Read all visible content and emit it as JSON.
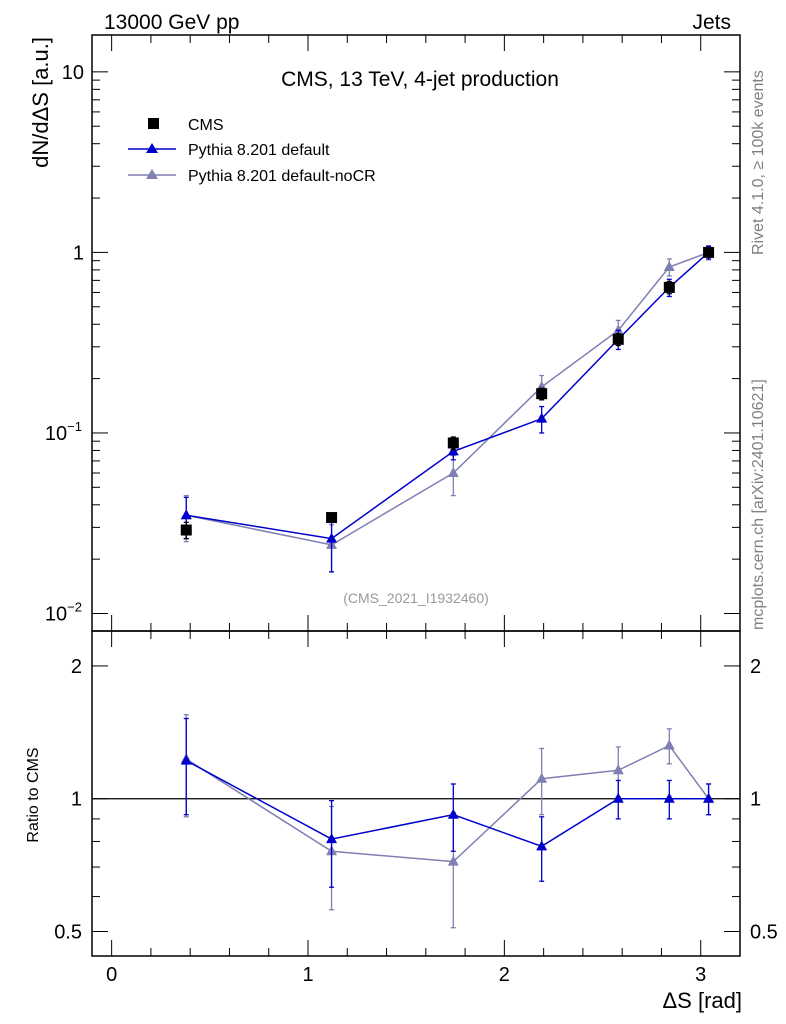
{
  "header": {
    "left": "13000 GeV pp",
    "right": "Jets"
  },
  "side_labels": {
    "rivet": "Rivet 4.1.0, ≥ 100k events",
    "mcplots": "mcplots.cern.ch [arXiv:2401.10621]"
  },
  "colors": {
    "data": "#000000",
    "pythia_default": "#0000cc",
    "pythia_nocr": "#7f7fb3",
    "watermark": "#999999",
    "side_text": "#808080"
  },
  "chart_data": [
    {
      "type": "line",
      "role": "main",
      "title": "CMS, 13 TeV, 4-jet production",
      "ylabel": "dN/dΔS [a.u.]",
      "yscale": "log",
      "ylim": [
        0.008,
        16
      ],
      "xlim": [
        -0.1,
        3.2
      ],
      "analysis_id": "(CMS_2021_I1932460)",
      "y_ticks": [
        {
          "value": 10,
          "label": "10"
        },
        {
          "value": 1,
          "label": "1"
        },
        {
          "value": 0.1,
          "base": "10",
          "exp": "−1"
        },
        {
          "value": 0.01,
          "base": "10",
          "exp": "−2"
        }
      ],
      "series": [
        {
          "name": "CMS",
          "kind": "data",
          "x": [
            0.38,
            1.12,
            1.74,
            2.19,
            2.58,
            2.84,
            3.04
          ],
          "y": [
            0.029,
            0.034,
            0.088,
            0.165,
            0.33,
            0.64,
            1.0
          ],
          "yerr": [
            0.003,
            0.002,
            0.007,
            0.012,
            0.025,
            0.05,
            0.05
          ]
        },
        {
          "name": "Pythia 8.201 default",
          "kind": "mc",
          "x": [
            0.38,
            1.12,
            1.74,
            2.19,
            2.58,
            2.84,
            3.04
          ],
          "y": [
            0.035,
            0.026,
            0.079,
            0.12,
            0.33,
            0.64,
            1.0
          ],
          "yerr": [
            0.009,
            0.009,
            0.008,
            0.02,
            0.04,
            0.07,
            0.08
          ]
        },
        {
          "name": "Pythia 8.201 default-noCR",
          "kind": "mc",
          "x": [
            0.38,
            1.12,
            1.74,
            2.19,
            2.58,
            2.84,
            3.04
          ],
          "y": [
            0.035,
            0.024,
            0.06,
            0.18,
            0.37,
            0.83,
            1.0
          ],
          "yerr": [
            0.01,
            0.007,
            0.015,
            0.028,
            0.05,
            0.09,
            0.09
          ]
        }
      ]
    },
    {
      "type": "line",
      "role": "ratio",
      "ylabel": "Ratio to CMS",
      "xlabel": "ΔS [rad]",
      "yscale": "log",
      "ylim": [
        0.44,
        2.4
      ],
      "xlim": [
        -0.1,
        3.2
      ],
      "reference_line": 1,
      "x_ticks": [
        {
          "value": 0,
          "label": "0"
        },
        {
          "value": 1,
          "label": "1"
        },
        {
          "value": 2,
          "label": "2"
        },
        {
          "value": 3,
          "label": "3"
        }
      ],
      "y_ticks": [
        {
          "value": 2,
          "label": "2"
        },
        {
          "value": 1,
          "label": "1"
        },
        {
          "value": 0.5,
          "label": "0.5"
        }
      ],
      "series": [
        {
          "name": "Pythia 8.201 default",
          "x": [
            0.38,
            1.12,
            1.74,
            2.19,
            2.58,
            2.84,
            3.04
          ],
          "y": [
            1.22,
            0.81,
            0.92,
            0.78,
            1.0,
            1.0,
            1.0
          ],
          "yerr": [
            0.3,
            0.18,
            0.16,
            0.13,
            0.1,
            0.1,
            0.08
          ]
        },
        {
          "name": "Pythia 8.201 default-noCR",
          "x": [
            0.38,
            1.12,
            1.74,
            2.19,
            2.58,
            2.84,
            3.04
          ],
          "y": [
            1.23,
            0.76,
            0.72,
            1.11,
            1.16,
            1.32,
            1.0
          ],
          "yerr": [
            0.32,
            0.2,
            0.21,
            0.19,
            0.15,
            0.12,
            0.08
          ]
        }
      ]
    }
  ]
}
